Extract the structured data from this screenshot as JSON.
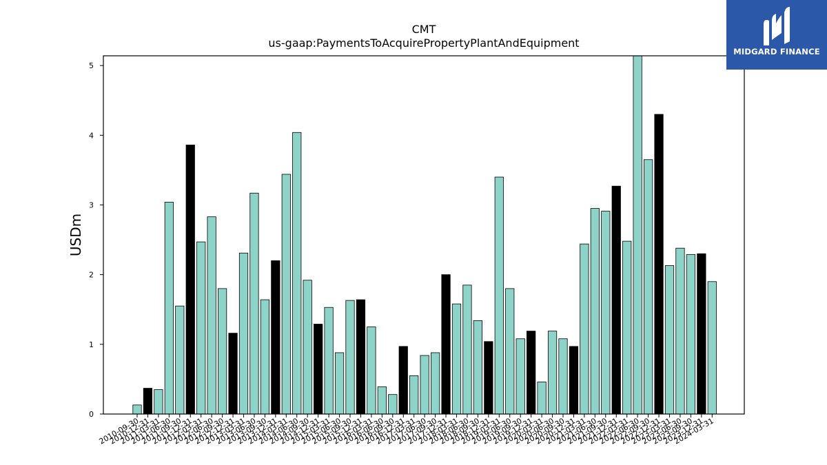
{
  "chart_data": {
    "type": "bar",
    "title": "CMT",
    "subtitle": "us-gaap:PaymentsToAcquirePropertyPlantAndEquipment",
    "xlabel": "",
    "ylabel": "USDm",
    "ylim": [
      0,
      5.14
    ],
    "yticks": [
      0,
      1,
      2,
      3,
      4,
      5
    ],
    "grid": false,
    "categories": [
      "2010-09-30",
      "2010-12-31",
      "2011-03-31",
      "2011-06-30",
      "2011-09-30",
      "2011-12-31",
      "2012-03-31",
      "2012-06-30",
      "2012-09-30",
      "2012-12-31",
      "2013-03-31",
      "2013-06-30",
      "2013-09-30",
      "2013-12-31",
      "2014-03-31",
      "2014-06-30",
      "2014-09-30",
      "2014-12-31",
      "2015-03-31",
      "2015-06-30",
      "2015-09-30",
      "2015-12-31",
      "2016-03-31",
      "2016-06-30",
      "2016-09-30",
      "2016-12-31",
      "2017-03-31",
      "2017-06-30",
      "2017-09-30",
      "2017-12-31",
      "2018-03-31",
      "2018-06-30",
      "2018-09-30",
      "2018-12-31",
      "2019-03-31",
      "2019-06-30",
      "2019-09-30",
      "2019-12-31",
      "2020-03-31",
      "2020-06-30",
      "2020-09-30",
      "2020-12-31",
      "2021-03-31",
      "2021-06-30",
      "2021-09-30",
      "2021-12-31",
      "2022-03-31",
      "2022-06-30",
      "2022-09-30",
      "2022-12-31",
      "2023-03-31",
      "2023-06-30",
      "2023-09-30",
      "2023-12-31",
      "2024-03-31"
    ],
    "values": [
      0.13,
      0.37,
      0.35,
      3.04,
      1.55,
      3.86,
      2.47,
      2.83,
      1.8,
      1.16,
      2.31,
      3.17,
      1.64,
      2.2,
      3.44,
      4.04,
      1.92,
      1.29,
      1.53,
      0.88,
      1.63,
      1.64,
      1.25,
      0.39,
      0.28,
      0.97,
      0.55,
      0.84,
      0.88,
      2.0,
      1.58,
      1.85,
      1.34,
      1.04,
      3.4,
      1.8,
      1.08,
      1.19,
      0.46,
      1.19,
      1.08,
      0.97,
      2.44,
      2.95,
      2.91,
      3.27,
      2.48,
      5.14,
      3.65,
      4.3,
      2.13,
      2.38,
      2.29,
      2.3,
      1.9
    ],
    "highlighted_categories": [
      "2010-12-31",
      "2011-12-31",
      "2012-12-31",
      "2013-12-31",
      "2014-12-31",
      "2015-12-31",
      "2016-12-31",
      "2017-12-31",
      "2018-12-31",
      "2019-12-31",
      "2020-12-31",
      "2021-12-31",
      "2022-12-31",
      "2023-12-31"
    ],
    "colors": {
      "bar": "#8dd3c7",
      "highlight": "#000000",
      "edge": "#000000"
    }
  },
  "logo": {
    "text": "MIDGARD FINANCE",
    "background": "#2b58a8"
  }
}
